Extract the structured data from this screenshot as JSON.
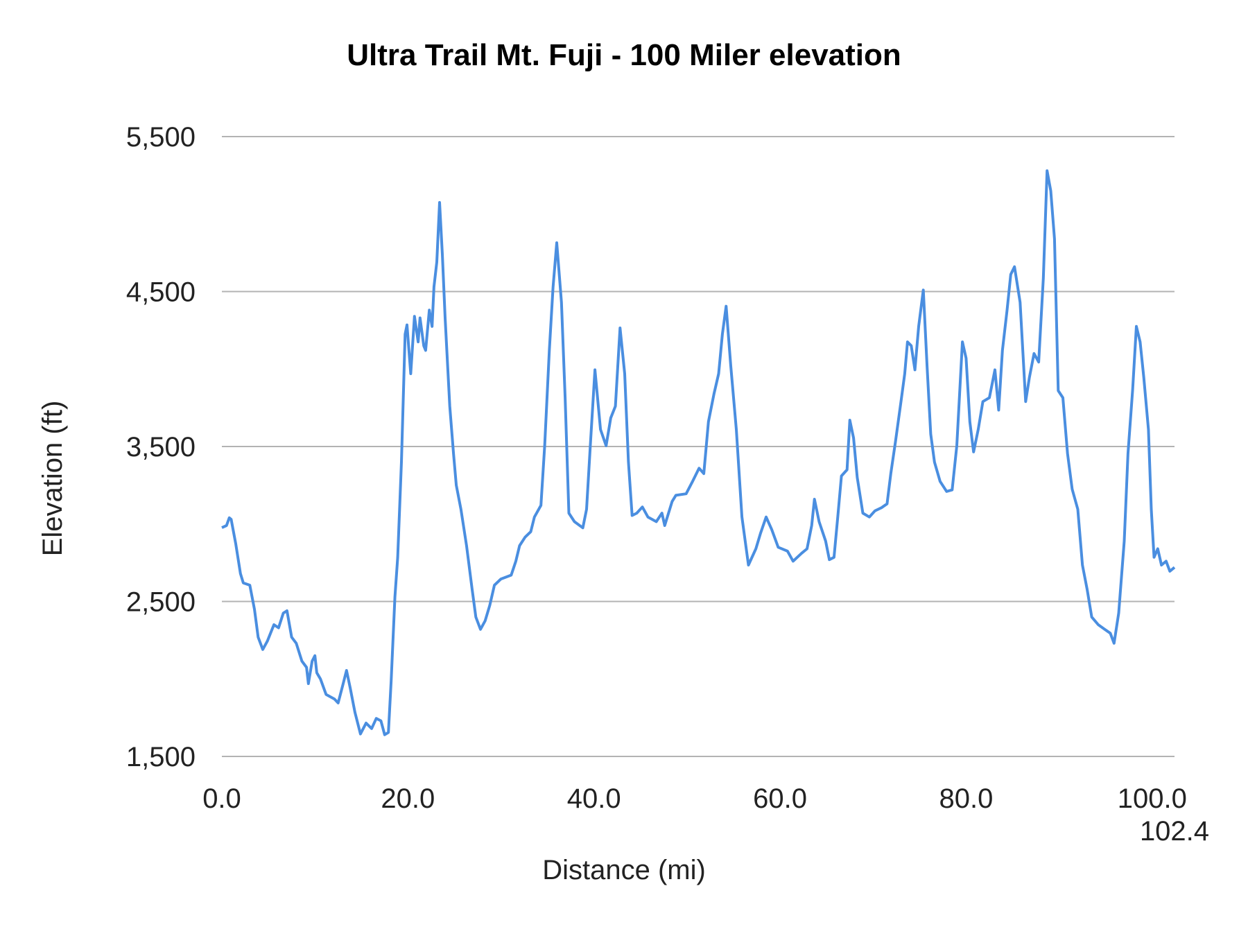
{
  "chart_data": {
    "type": "line",
    "title": "Ultra Trail Mt. Fuji - 100 Miler elevation",
    "xlabel": "Distance (mi)",
    "ylabel": "Elevation (ft)",
    "xlim": [
      0,
      102.4
    ],
    "ylim": [
      1500,
      5500
    ],
    "x_ticks": [
      0,
      20,
      40,
      60,
      80,
      100,
      102.4
    ],
    "x_tick_labels": [
      "0.0",
      "20.0",
      "40.0",
      "60.0",
      "80.0",
      "100.0",
      "102.4"
    ],
    "y_ticks": [
      1500,
      2500,
      3500,
      4500,
      5500
    ],
    "y_tick_labels": [
      "1,500",
      "2,500",
      "3,500",
      "4,500",
      "5,500"
    ],
    "grid": true,
    "legend": "none",
    "line_color": "#4a8ee0",
    "series": [
      {
        "x": [
          0,
          0.5,
          0.8,
          1.0,
          1.5,
          2.0,
          2.3,
          3.0,
          3.5,
          3.9,
          4.4,
          4.9,
          5.6,
          6.1,
          6.6,
          7.0,
          7.5,
          8.0,
          8.6,
          9.1,
          9.3,
          9.7,
          10.0,
          10.2,
          10.6,
          11.2,
          12.1,
          12.5,
          13.0,
          13.4,
          13.8,
          14.3,
          14.9,
          15.5,
          16.1,
          16.6,
          17.1,
          17.5,
          17.9,
          18.2,
          18.6,
          18.9,
          19.3,
          19.7,
          19.9,
          20.3,
          20.7,
          21.1,
          21.3,
          21.7,
          21.9,
          22.3,
          22.6,
          22.8,
          23.1,
          23.4,
          23.7,
          24.0,
          24.5,
          24.9,
          25.2,
          25.7,
          26.3,
          26.9,
          27.3,
          27.8,
          28.3,
          28.8,
          29.3,
          30.0,
          31.1,
          31.6,
          32.0,
          32.6,
          33.2,
          33.6,
          34.3,
          34.7,
          35.2,
          35.6,
          36.0,
          36.5,
          36.9,
          37.3,
          37.9,
          38.8,
          39.2,
          39.6,
          40.1,
          40.7,
          41.3,
          41.8,
          42.3,
          42.8,
          43.3,
          43.7,
          44.1,
          44.6,
          45.2,
          45.8,
          46.7,
          47.3,
          47.6,
          48.4,
          48.8,
          49.9,
          50.6,
          51.3,
          51.8,
          52.3,
          52.9,
          53.4,
          53.8,
          54.2,
          54.7,
          55.3,
          55.9,
          56.6,
          57.4,
          57.9,
          58.5,
          59.1,
          59.8,
          60.8,
          61.4,
          62.3,
          62.9,
          63.4,
          63.7,
          64.2,
          64.9,
          65.3,
          65.8,
          66.2,
          66.6,
          67.2,
          67.5,
          67.9,
          68.3,
          68.9,
          69.6,
          70.2,
          70.9,
          71.5,
          71.9,
          72.4,
          73.0,
          73.4,
          73.7,
          74.1,
          74.5,
          74.9,
          75.4,
          75.8,
          76.2,
          76.6,
          77.2,
          77.9,
          78.5,
          79.0,
          79.6,
          80.0,
          80.4,
          80.8,
          81.3,
          81.8,
          82.5,
          83.1,
          83.5,
          83.9,
          84.4,
          84.8,
          85.2,
          85.8,
          86.4,
          86.8,
          87.3,
          87.8,
          88.3,
          88.7,
          89.1,
          89.5,
          89.9,
          90.4,
          90.9,
          91.4,
          92.0,
          92.5,
          93.0,
          93.5,
          94.2,
          94.9,
          95.5,
          95.9,
          96.4,
          97.0,
          97.4,
          97.9,
          98.3,
          98.7,
          99.1,
          99.6,
          99.9,
          100.2,
          100.6,
          101.0,
          101.5,
          101.9,
          102.4
        ],
        "y": [
          2976,
          2990,
          3040,
          3030,
          2870,
          2680,
          2620,
          2605,
          2450,
          2270,
          2190,
          2245,
          2350,
          2330,
          2425,
          2440,
          2270,
          2230,
          2115,
          2075,
          1970,
          2115,
          2150,
          2040,
          2000,
          1900,
          1870,
          1845,
          1960,
          2055,
          1940,
          1785,
          1645,
          1715,
          1680,
          1745,
          1730,
          1640,
          1655,
          1990,
          2530,
          2785,
          3400,
          4225,
          4285,
          3970,
          4340,
          4175,
          4330,
          4150,
          4120,
          4380,
          4275,
          4530,
          4690,
          5075,
          4740,
          4330,
          3760,
          3455,
          3250,
          3095,
          2860,
          2580,
          2400,
          2320,
          2375,
          2475,
          2605,
          2645,
          2670,
          2760,
          2860,
          2915,
          2950,
          3045,
          3120,
          3505,
          4120,
          4530,
          4815,
          4430,
          3815,
          3070,
          3015,
          2975,
          3095,
          3505,
          3995,
          3610,
          3505,
          3685,
          3760,
          4265,
          3970,
          3400,
          3055,
          3070,
          3110,
          3045,
          3015,
          3070,
          2990,
          3145,
          3185,
          3195,
          3275,
          3360,
          3325,
          3660,
          3840,
          3970,
          4225,
          4405,
          4020,
          3610,
          3045,
          2735,
          2840,
          2940,
          3045,
          2965,
          2850,
          2825,
          2760,
          2810,
          2840,
          2990,
          3160,
          3015,
          2890,
          2770,
          2785,
          3045,
          3310,
          3350,
          3670,
          3555,
          3300,
          3070,
          3045,
          3085,
          3105,
          3130,
          3325,
          3530,
          3790,
          3970,
          4175,
          4150,
          3995,
          4275,
          4510,
          4020,
          3580,
          3400,
          3275,
          3210,
          3220,
          3505,
          4175,
          4070,
          3660,
          3465,
          3610,
          3790,
          3815,
          3995,
          3735,
          4120,
          4380,
          4610,
          4660,
          4430,
          3790,
          3945,
          4100,
          4045,
          4585,
          5280,
          5150,
          4840,
          3860,
          3815,
          3455,
          3225,
          3095,
          2735,
          2580,
          2400,
          2350,
          2320,
          2295,
          2230,
          2425,
          2890,
          3455,
          3865,
          4275,
          4175,
          3945,
          3610,
          3095,
          2785,
          2840,
          2735,
          2760,
          2695,
          2720
        ]
      }
    ]
  }
}
